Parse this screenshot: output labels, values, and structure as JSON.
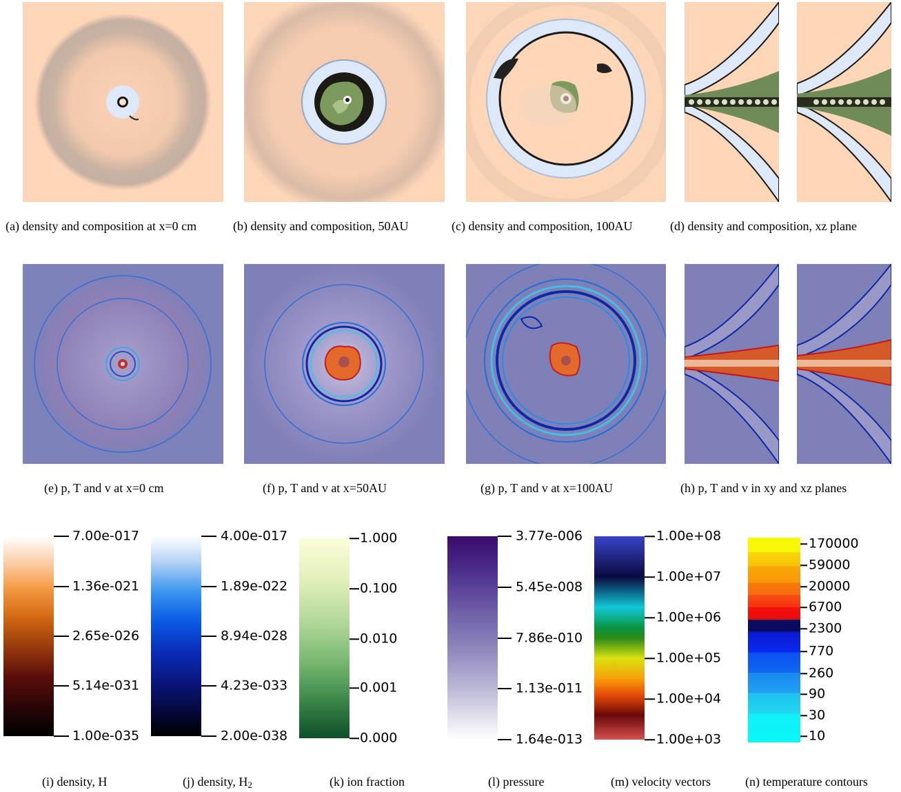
{
  "row1_captions": {
    "a": "(a) density and composition at x=0 cm",
    "b": "(b) density and composition, 50AU",
    "c": "(c) density and composition, 100AU",
    "d": "(d) density and composition, xz plane"
  },
  "row2_captions": {
    "e": "(e) p, T and v at x=0 cm",
    "f": "(f) p, T and v at x=50AU",
    "g": "(g) p, T and v at x=100AU",
    "h": "(h) p, T and v in xy and xz planes"
  },
  "colorbars": {
    "i": {
      "caption": "(i) density, H",
      "labels": [
        "7.00e-017",
        "1.36e-021",
        "2.65e-026",
        "5.14e-031",
        "1.00e-035"
      ]
    },
    "j": {
      "caption_prefix": "(j) density, H",
      "caption_sub": "2",
      "labels": [
        "4.00e-017",
        "1.89e-022",
        "8.94e-028",
        "4.23e-033",
        "2.00e-038"
      ]
    },
    "k": {
      "caption": "(k) ion fraction",
      "labels": [
        "1.000",
        "0.100",
        "0.010",
        "0.001",
        "0.000"
      ]
    },
    "l": {
      "caption": "(l) pressure",
      "labels": [
        "3.77e-006",
        "5.45e-008",
        "7.86e-010",
        "1.13e-011",
        "1.64e-013"
      ]
    },
    "m": {
      "caption": "(m) velocity vectors",
      "labels": [
        "1.00e+08",
        "1.00e+07",
        "1.00e+06",
        "1.00e+05",
        "1.00e+04",
        "1.00e+03"
      ]
    },
    "n": {
      "caption": "(n) temperature contours",
      "labels": [
        "170000",
        "59000",
        "20000",
        "6700",
        "2300",
        "770",
        "260",
        "90",
        "30",
        "10"
      ]
    }
  },
  "colors": {
    "background_density": "#fdd5b7",
    "background_pressure": "#8080b8",
    "shell_light_blue": "#dde8f8",
    "ion_green": "#7d9a5e"
  }
}
